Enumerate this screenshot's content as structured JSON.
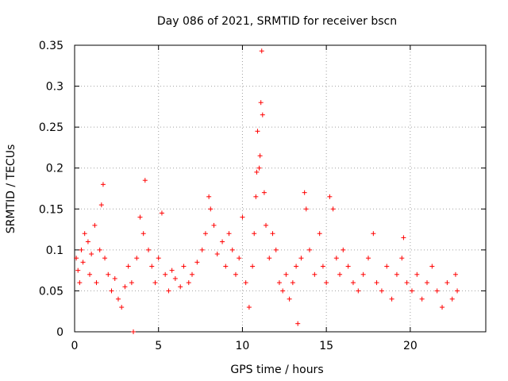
{
  "chart_data": {
    "type": "scatter",
    "title": "Day 086 of 2021, SRMTID for receiver bscn",
    "xlabel": "GPS time / hours",
    "ylabel": "SRMTID / TECUs",
    "xlim": [
      0,
      24.5
    ],
    "ylim": [
      0,
      0.35
    ],
    "x_ticks": [
      0,
      5,
      10,
      15,
      20
    ],
    "x_tick_labels": [
      "0",
      "5",
      "10",
      "15",
      "20"
    ],
    "y_ticks": [
      0,
      0.05,
      0.1,
      0.15,
      0.2,
      0.25,
      0.3,
      0.35
    ],
    "y_tick_labels": [
      "0",
      "0.05",
      "0.1",
      "0.15",
      "0.2",
      "0.25",
      "0.3",
      "0.35"
    ],
    "grid": true,
    "marker": "+",
    "color": "#ff0000",
    "series": [
      {
        "name": "SRMTID",
        "points": [
          [
            0.1,
            0.09
          ],
          [
            0.2,
            0.075
          ],
          [
            0.3,
            0.06
          ],
          [
            0.4,
            0.1
          ],
          [
            0.5,
            0.085
          ],
          [
            0.6,
            0.12
          ],
          [
            0.8,
            0.11
          ],
          [
            0.9,
            0.07
          ],
          [
            1.0,
            0.095
          ],
          [
            1.2,
            0.13
          ],
          [
            1.3,
            0.06
          ],
          [
            1.5,
            0.1
          ],
          [
            1.6,
            0.155
          ],
          [
            1.7,
            0.18
          ],
          [
            1.8,
            0.09
          ],
          [
            2.0,
            0.07
          ],
          [
            2.2,
            0.05
          ],
          [
            2.4,
            0.065
          ],
          [
            2.6,
            0.04
          ],
          [
            2.8,
            0.03
          ],
          [
            3.0,
            0.055
          ],
          [
            3.2,
            0.08
          ],
          [
            3.4,
            0.06
          ],
          [
            3.5,
            0.0
          ],
          [
            3.7,
            0.09
          ],
          [
            3.9,
            0.14
          ],
          [
            4.1,
            0.12
          ],
          [
            4.2,
            0.185
          ],
          [
            4.4,
            0.1
          ],
          [
            4.6,
            0.08
          ],
          [
            4.8,
            0.06
          ],
          [
            5.0,
            0.09
          ],
          [
            5.2,
            0.145
          ],
          [
            5.4,
            0.07
          ],
          [
            5.6,
            0.05
          ],
          [
            5.8,
            0.075
          ],
          [
            6.0,
            0.065
          ],
          [
            6.3,
            0.055
          ],
          [
            6.5,
            0.08
          ],
          [
            6.8,
            0.06
          ],
          [
            7.0,
            0.07
          ],
          [
            7.3,
            0.085
          ],
          [
            7.6,
            0.1
          ],
          [
            7.8,
            0.12
          ],
          [
            8.0,
            0.165
          ],
          [
            8.1,
            0.15
          ],
          [
            8.3,
            0.13
          ],
          [
            8.5,
            0.095
          ],
          [
            8.8,
            0.11
          ],
          [
            9.0,
            0.08
          ],
          [
            9.2,
            0.12
          ],
          [
            9.4,
            0.1
          ],
          [
            9.6,
            0.07
          ],
          [
            9.8,
            0.09
          ],
          [
            10.0,
            0.14
          ],
          [
            10.2,
            0.06
          ],
          [
            10.4,
            0.03
          ],
          [
            10.6,
            0.08
          ],
          [
            10.7,
            0.12
          ],
          [
            10.8,
            0.165
          ],
          [
            10.85,
            0.195
          ],
          [
            10.9,
            0.245
          ],
          [
            11.0,
            0.2
          ],
          [
            11.05,
            0.215
          ],
          [
            11.1,
            0.28
          ],
          [
            11.15,
            0.343
          ],
          [
            11.2,
            0.265
          ],
          [
            11.3,
            0.17
          ],
          [
            11.4,
            0.13
          ],
          [
            11.6,
            0.09
          ],
          [
            11.8,
            0.12
          ],
          [
            12.0,
            0.1
          ],
          [
            12.2,
            0.06
          ],
          [
            12.4,
            0.05
          ],
          [
            12.6,
            0.07
          ],
          [
            12.8,
            0.04
          ],
          [
            13.0,
            0.06
          ],
          [
            13.2,
            0.08
          ],
          [
            13.3,
            0.01
          ],
          [
            13.5,
            0.09
          ],
          [
            13.7,
            0.17
          ],
          [
            13.8,
            0.15
          ],
          [
            14.0,
            0.1
          ],
          [
            14.3,
            0.07
          ],
          [
            14.6,
            0.12
          ],
          [
            14.8,
            0.08
          ],
          [
            15.0,
            0.06
          ],
          [
            15.2,
            0.165
          ],
          [
            15.4,
            0.15
          ],
          [
            15.6,
            0.09
          ],
          [
            15.8,
            0.07
          ],
          [
            16.0,
            0.1
          ],
          [
            16.3,
            0.08
          ],
          [
            16.6,
            0.06
          ],
          [
            16.9,
            0.05
          ],
          [
            17.2,
            0.07
          ],
          [
            17.5,
            0.09
          ],
          [
            17.8,
            0.12
          ],
          [
            18.0,
            0.06
          ],
          [
            18.3,
            0.05
          ],
          [
            18.6,
            0.08
          ],
          [
            18.9,
            0.04
          ],
          [
            19.2,
            0.07
          ],
          [
            19.5,
            0.09
          ],
          [
            19.6,
            0.115
          ],
          [
            19.8,
            0.06
          ],
          [
            20.1,
            0.05
          ],
          [
            20.4,
            0.07
          ],
          [
            20.7,
            0.04
          ],
          [
            21.0,
            0.06
          ],
          [
            21.3,
            0.08
          ],
          [
            21.6,
            0.05
          ],
          [
            21.9,
            0.03
          ],
          [
            22.2,
            0.06
          ],
          [
            22.5,
            0.04
          ],
          [
            22.7,
            0.07
          ],
          [
            22.8,
            0.05
          ]
        ]
      }
    ]
  }
}
